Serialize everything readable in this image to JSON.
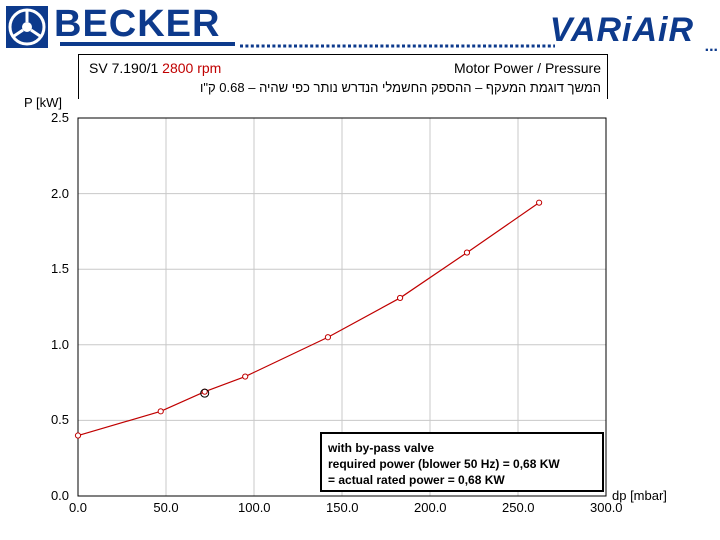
{
  "header": {
    "brand_left": "BECKER",
    "brand_right": "VARiAiR",
    "brand_right_suffix": "...",
    "brand_color": "#0d3a8c",
    "logo_icon": "becker-emblem-icon"
  },
  "title": {
    "model": "SV 7.190/1",
    "rpm": "2800 rpm",
    "rpm_color": "#c00000",
    "right": "Motor Power / Pressure",
    "note": "המשך דוגמת המעקף – ההספק החשמלי הנדרש נותר כפי שהיה – 0.68 ק\"ו"
  },
  "legend_note": {
    "line1": "with by-pass valve",
    "line2": "required power (blower 50 Hz) = 0,68 KW",
    "line3": "= actual rated power = 0,68 KW"
  },
  "chart_data": {
    "type": "line",
    "xlabel": "dp [mbar]",
    "ylabel": "P [kW]",
    "xlim": [
      0,
      300
    ],
    "ylim": [
      0,
      2.5
    ],
    "x_ticks": [
      "0.0",
      "50.0",
      "100.0",
      "150.0",
      "200.0",
      "250.0",
      "300.0"
    ],
    "y_ticks": [
      "0.0",
      "0.5",
      "1.0",
      "1.5",
      "2.0",
      "2.5"
    ],
    "grid": true,
    "line_color": "#c00000",
    "series": [
      {
        "points": [
          {
            "x": 0,
            "y": 0.4
          },
          {
            "x": 47,
            "y": 0.56
          },
          {
            "x": 72,
            "y": 0.69
          },
          {
            "x": 95,
            "y": 0.79
          },
          {
            "x": 142,
            "y": 1.05
          },
          {
            "x": 183,
            "y": 1.31
          },
          {
            "x": 221,
            "y": 1.61
          },
          {
            "x": 262,
            "y": 1.94
          }
        ]
      }
    ],
    "marker": {
      "x": 72,
      "y": 0.68
    }
  }
}
